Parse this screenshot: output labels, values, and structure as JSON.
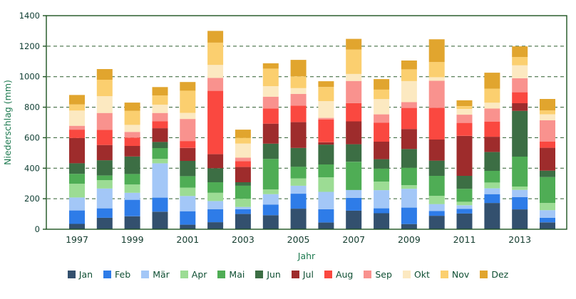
{
  "chart_data": {
    "type": "bar",
    "stacked": true,
    "title": "",
    "xlabel": "Jahr",
    "ylabel": "Niederschlag (mm)",
    "ylim": [
      0,
      1400
    ],
    "ytick_step": 200,
    "grid": "horizontal-dashed",
    "legend_position": "bottom-center",
    "categories": [
      "1997",
      "1998",
      "1999",
      "2000",
      "2001",
      "2002",
      "2003",
      "2004",
      "2005",
      "2006",
      "2007",
      "2008",
      "2009",
      "2010",
      "2011",
      "2012",
      "2013",
      "2014"
    ],
    "xtick_labels": [
      "1997",
      "1999",
      "2001",
      "2003",
      "2005",
      "2007",
      "2009",
      "2011",
      "2013"
    ],
    "series": [
      {
        "name": "Jan",
        "color": "#33506E",
        "values": [
          35,
          75,
          85,
          115,
          30,
          46,
          100,
          92,
          135,
          44,
          122,
          105,
          34,
          88,
          103,
          172,
          130,
          45
        ]
      },
      {
        "name": "Feb",
        "color": "#2E7CE8",
        "values": [
          88,
          62,
          108,
          92,
          88,
          85,
          31,
          69,
          98,
          87,
          84,
          32,
          108,
          31,
          31,
          58,
          80,
          30
        ]
      },
      {
        "name": "Mär",
        "color": "#A3C7F7",
        "values": [
          85,
          130,
          46,
          225,
          100,
          54,
          15,
          69,
          52,
          114,
          51,
          119,
          123,
          46,
          23,
          38,
          48,
          50
        ]
      },
      {
        "name": "Apr",
        "color": "#9CDC94",
        "values": [
          90,
          55,
          54,
          30,
          55,
          54,
          54,
          31,
          48,
          95,
          0,
          56,
          23,
          54,
          23,
          38,
          22,
          47
        ]
      },
      {
        "name": "Mai",
        "color": "#4FAD55",
        "values": [
          65,
          30,
          69,
          70,
          75,
          69,
          85,
          200,
          77,
          85,
          185,
          85,
          115,
          131,
          85,
          77,
          196,
          170
        ]
      },
      {
        "name": "Jun",
        "color": "#3C6E44",
        "values": [
          70,
          100,
          115,
          40,
          100,
          92,
          23,
          100,
          123,
          130,
          115,
          62,
          123,
          100,
          85,
          123,
          300,
          42
        ]
      },
      {
        "name": "Jul",
        "color": "#9E2C2C",
        "values": [
          165,
          100,
          69,
          90,
          85,
          92,
          100,
          131,
          169,
          15,
          150,
          115,
          131,
          138,
          262,
          100,
          50,
          150
        ]
      },
      {
        "name": "Aug",
        "color": "#FA4840",
        "values": [
          55,
          100,
          54,
          45,
          45,
          415,
          38,
          100,
          108,
          150,
          120,
          125,
          138,
          208,
          85,
          100,
          72,
          40
        ]
      },
      {
        "name": "Sep",
        "color": "#F9928E",
        "values": [
          25,
          110,
          38,
          55,
          145,
          85,
          23,
          77,
          77,
          10,
          145,
          54,
          38,
          177,
          54,
          85,
          92,
          140
        ]
      },
      {
        "name": "Okt",
        "color": "#FCE9C1",
        "values": [
          100,
          110,
          46,
          55,
          40,
          85,
          92,
          69,
          38,
          110,
          46,
          100,
          138,
          23,
          38,
          38,
          85,
          40
        ]
      },
      {
        "name": "Nov",
        "color": "#FBCF6F",
        "values": [
          40,
          108,
          92,
          60,
          145,
          146,
          38,
          115,
          77,
          92,
          160,
          62,
          77,
          100,
          18,
          92,
          54,
          25
        ]
      },
      {
        "name": "Dez",
        "color": "#E1A52E",
        "values": [
          62,
          70,
          54,
          55,
          57,
          77,
          54,
          35,
          108,
          38,
          70,
          69,
          58,
          149,
          38,
          105,
          70,
          75
        ]
      }
    ],
    "style": {
      "frame_color": "#1d5220",
      "grid_color": "#2f5d2f",
      "tick_label_color": "#0d3c31",
      "axis_title_color": "#1e7a50",
      "legend_text_color": "#0f4f33",
      "background": "#ffffff"
    }
  }
}
